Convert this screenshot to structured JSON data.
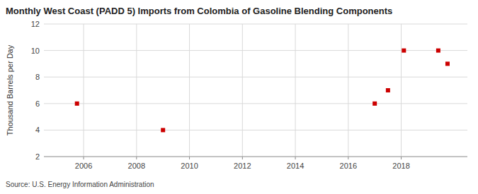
{
  "chart_data": {
    "type": "scatter",
    "title": "Monthly West Coast (PADD 5) Imports from Colombia of Gasoline Blending Components",
    "ylabel": "Thousand Barrels per Day",
    "source": "Source: U.S. Energy Information Administration",
    "x": [
      2005.75,
      2009.0,
      2017.0,
      2017.5,
      2018.1,
      2019.4,
      2019.75
    ],
    "values": [
      6,
      4,
      6,
      7,
      10,
      10,
      9
    ],
    "color": "#cc0000",
    "marker": "square",
    "xlim": [
      2004.5,
      2020.5
    ],
    "ylim": [
      2,
      12
    ],
    "xticks": [
      2006,
      2008,
      2010,
      2012,
      2014,
      2016,
      2018
    ],
    "yticks": [
      2,
      4,
      6,
      8,
      10,
      12
    ],
    "grid": true
  }
}
